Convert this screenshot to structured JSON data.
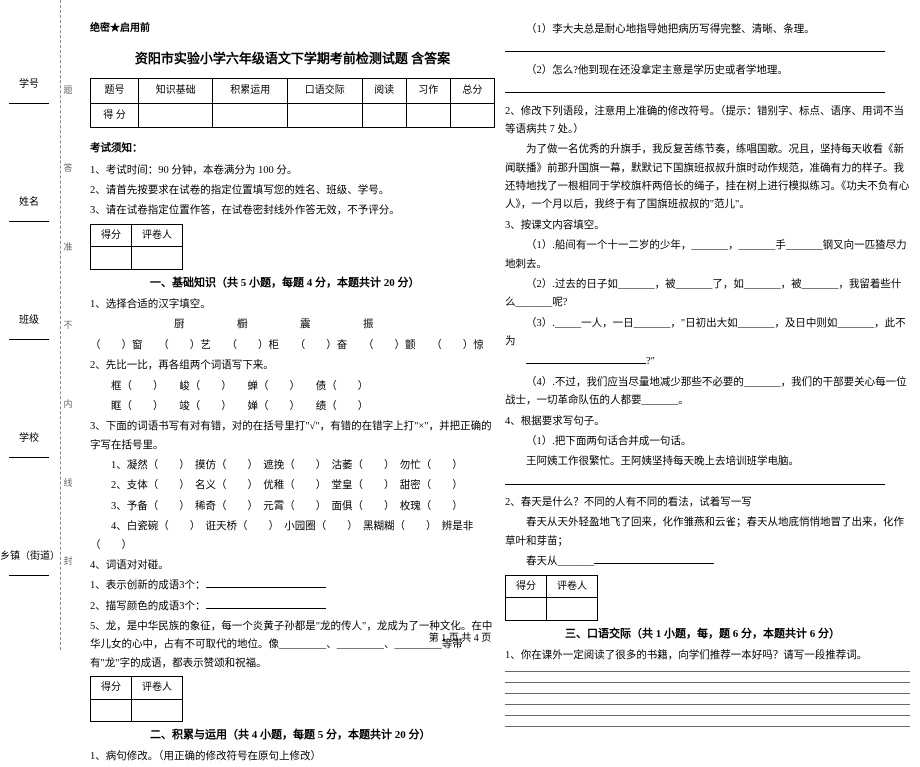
{
  "binding": {
    "fields": [
      "乡镇（街道）",
      "学校",
      "班级",
      "姓名",
      "学号"
    ],
    "seal": [
      "封",
      "线",
      "内",
      "不",
      "准",
      "答",
      "题"
    ]
  },
  "header": {
    "secret": "绝密★启用前",
    "title": "资阳市实验小学六年级语文下学期考前检测试题 含答案"
  },
  "scoreTable": {
    "rows": [
      [
        "题号",
        "知识基础",
        "积累运用",
        "口语交际",
        "阅读",
        "习作",
        "总分"
      ],
      [
        "得 分",
        "",
        "",
        "",
        "",
        "",
        ""
      ]
    ]
  },
  "notes": {
    "heading": "考试须知：",
    "items": [
      "1、考试时间：90 分钟，本卷满分为 100 分。",
      "2、请首先按要求在试卷的指定位置填写您的姓名、班级、学号。",
      "3、请在试卷指定位置作答，在试卷密封线外作答无效，不予评分。"
    ]
  },
  "scoreBox": {
    "c1": "得分",
    "c2": "评卷人"
  },
  "section1": {
    "title": "一、基础知识（共 5 小题，每题 4 分，本题共计 20 分）",
    "q1": "1、选择合适的汉字填空。",
    "q1row1": "　　　　　　　　厨　　　　　橱　　　　　震　　　　　振",
    "q1row2": "（　　）窗　　（　　）艺　　（　　）柜　　（　　）奋　　（　　）颤　　（　　）惊",
    "q2": "2、先比一比，再各组两个词语写下来。",
    "q2row": "框（　　）　　峻（　　）　　蝉（　　）　　债（　　）",
    "q2row2": "眶（　　）　　竣（　　）　　婵（　　）　　绩（　　）",
    "q3": "3、下面的词语书写有对有错，对的在括号里打\"√\"，有错的在错字上打\"×\"，并把正确的字写在括号里。",
    "q3a": "1、凝然（　　）　摸仿（　　）　遮挽（　　）　沽萎（　　）　勿忙（　　）",
    "q3b": "2、支体（　　）　名义（　　）　优稚（　　）　堂皇（　　）　甜密（　　）",
    "q3c": "3、予备（　　）　稀奇（　　）　元霄（　　）　面俱（　　）　枚瑰（　　）",
    "q3d": "4、白瓷碗（　　）　诳天桥（　　）　小园圈（　　）　黑糊糊（　　）　辨是非（　　）",
    "q4": "4、词语对对碰。",
    "q4a": "1、表示创新的成语3个：",
    "q4b": "2、描写颜色的成语3个：",
    "q5": "5、龙，是中华民族的象征，每一个炎黄子孙都是\"龙的传人\"，龙成为了一种文化。在中华儿女的心中，占有不可取代的地位。像_________、_________、_________等带有\"龙\"字的成语，都表示赞颂和祝福。"
  },
  "section2": {
    "title": "二、积累与运用（共 4 小题，每题 5 分，本题共计 20 分）",
    "q1": "1、病句修改。（用正确的修改符号在原句上修改）",
    "rA": "（1）李大夫总是耐心地指导她把病历写得完整、清晰、条理。",
    "rB": "（2）怎么?他到现在还没拿定主意是学历史或者学地理。",
    "q2": "2、修改下列语段，注意用上准确的修改符号。（提示：错别字、标点、语序、用词不当等语病共 7 处。）",
    "q2text": "为了做一名优秀的升旗手，我反复苦练节奏，练唱国歌。况且，坚持每天收看《新闻联播》前那升国旗一幕，默默记下国旗班叔叔升旗时动作规范，准确有力的样子。我还特地找了一根相同于学校旗杆两倍长的绳子，挂在树上进行模拟练习。《功夫不负有心人》，一个月以后，我终于有了国旗班叔叔的\"范儿\"。",
    "q3": "3、按课文内容填空。",
    "q3a": "（1）.船间有一个十一二岁的少年，_______，_______手_______钢叉向一匹猹尽力地刺去。",
    "q3b": "（2）.过去的日子如_______，被_______了，如_______，被_______，我留着些什么_______呢?",
    "q3c": "（3）._____一人，一日_______，\"日初出大如_______，及日中则如_______，此不为",
    "q3d": "（4）.不过，我们应当尽量地减少那些不必要的_______，我们的干部要关心每一位战士，一切革命队伍的人都要_______。",
    "q4": "4、根据要求写句子。",
    "q4a": "王阿姨工作很繁忙。王阿姨坚持每天晚上去培训班学电脑。",
    "q4b": "（1）.把下面两句话合并成一句话。",
    "q5": "2、春天是什么？不同的人有不同的看法，试着写一写",
    "q5a": "春天从天外轻盈地飞了回来，化作雏燕和云雀；春天从地底悄悄地冒了出来，化作草叶和芽苗；",
    "q5b": "春天从_______"
  },
  "section3": {
    "title": "三、口语交际（共 1 小题，每，题 6 分，本题共计 6 分）",
    "q1": "1、你在课外一定阅读了很多的书籍，向学们推荐一本好吗？请写一段推荐词。"
  },
  "footer": "第 1 页 共 4 页"
}
